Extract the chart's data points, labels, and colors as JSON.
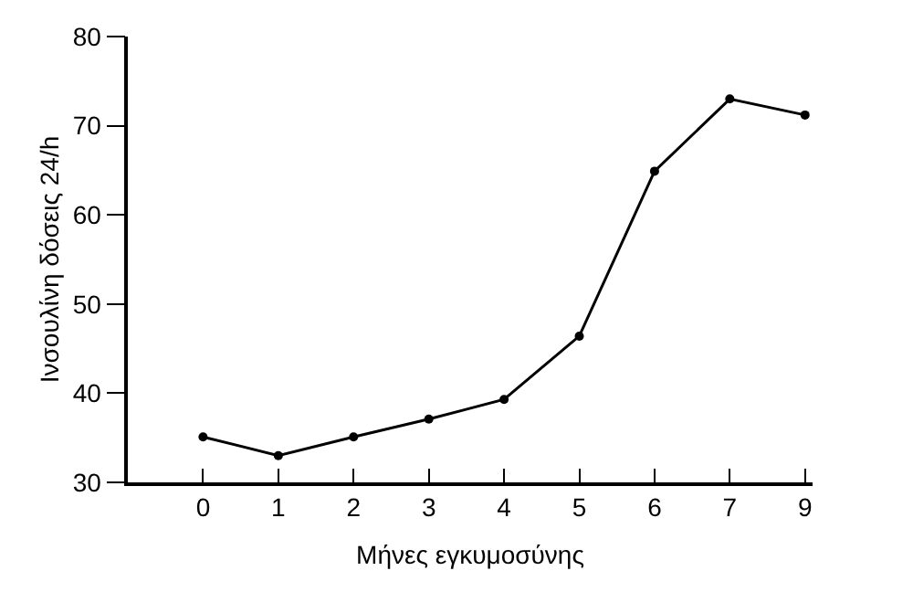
{
  "chart_data": {
    "type": "line",
    "xlabel": "Μήνες εγκυμοσύνης",
    "ylabel": "Ινσουλίνη δόσεις 24/h",
    "categories": [
      "0",
      "1",
      "2",
      "3",
      "4",
      "5",
      "6",
      "7",
      "9"
    ],
    "series": [
      {
        "color": "#000000",
        "values": [
          35.1,
          33.0,
          35.1,
          37.1,
          39.3,
          46.4,
          64.9,
          73.0,
          71.2
        ]
      }
    ],
    "ylim": [
      30,
      80
    ],
    "yticks": [
      30,
      40,
      50,
      60,
      70,
      80
    ],
    "marker": "circle",
    "line_style": "solid"
  }
}
